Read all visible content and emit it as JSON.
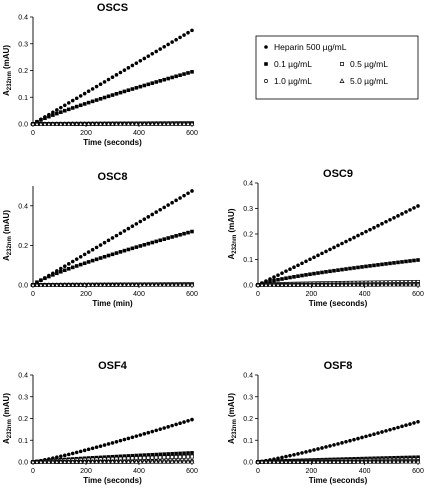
{
  "chart_data": [
    {
      "type": "scatter",
      "title": "OSCS",
      "xlabel": "Time (seconds)",
      "ylabel": "A232nm (mAU)",
      "ylabel_main": "A",
      "ylabel_sub": "232nm",
      "ylabel_unit": " (mAU)",
      "xlim": [
        0,
        600
      ],
      "ylim": [
        0,
        0.4
      ],
      "xticks": [
        0,
        200,
        400,
        600
      ],
      "yticks": [
        0.0,
        0.1,
        0.2,
        0.3,
        0.4
      ],
      "ytick_labels": [
        "0.0",
        "0.1",
        "0.2",
        "0.3",
        "0.4"
      ],
      "series": [
        {
          "name": "Heparin 500 µg/mL",
          "marker": "circle-filled",
          "slope": 0.35,
          "power": 1.0
        },
        {
          "name": "0.1 µg/mL",
          "marker": "square-filled",
          "slope": 0.195,
          "power": 0.85
        },
        {
          "name": "0.5 µg/mL",
          "marker": "square-open",
          "slope": 0.003,
          "power": 1.0
        },
        {
          "name": "1.0 µg/mL",
          "marker": "circle-open",
          "slope": 0.002,
          "power": 1.0
        },
        {
          "name": "5.0 µg/mL",
          "marker": "triangle-open",
          "slope": 0.001,
          "power": 1.0
        }
      ]
    },
    {
      "type": "scatter",
      "title": "OSC8",
      "xlabel": "Time (min)",
      "ylabel": "A232nm (mAU)",
      "ylabel_main": "A",
      "ylabel_sub": "232nm",
      "ylabel_unit": " (mAU)",
      "xlim": [
        0,
        600
      ],
      "ylim": [
        0,
        0.5
      ],
      "xticks": [
        0,
        200,
        400,
        600
      ],
      "yticks": [
        0.0,
        0.2,
        0.4
      ],
      "ytick_labels": [
        "0.0",
        "0.2",
        "0.4"
      ],
      "series": [
        {
          "name": "Heparin 500 µg/mL",
          "marker": "circle-filled",
          "slope": 0.475,
          "power": 1.0
        },
        {
          "name": "0.1 µg/mL",
          "marker": "square-filled",
          "slope": 0.27,
          "power": 0.8
        },
        {
          "name": "0.5 µg/mL",
          "marker": "square-open",
          "slope": 0.004,
          "power": 1.0
        },
        {
          "name": "1.0 µg/mL",
          "marker": "circle-open",
          "slope": 0.003,
          "power": 1.0
        },
        {
          "name": "5.0 µg/mL",
          "marker": "triangle-open",
          "slope": 0.002,
          "power": 1.0
        }
      ]
    },
    {
      "type": "scatter",
      "title": "OSC9",
      "xlabel": "Time (seconds)",
      "ylabel": "A232nm (mAU)",
      "ylabel_main": "A",
      "ylabel_sub": "232nm",
      "ylabel_unit": " (mAU)",
      "xlim": [
        0,
        600
      ],
      "ylim": [
        0,
        0.4
      ],
      "xticks": [
        0,
        200,
        400,
        600
      ],
      "yticks": [
        0.0,
        0.1,
        0.2,
        0.3,
        0.4
      ],
      "ytick_labels": [
        "0.0",
        "0.1",
        "0.2",
        "0.3",
        "0.4"
      ],
      "series": [
        {
          "name": "Heparin 500 µg/mL",
          "marker": "circle-filled",
          "slope": 0.31,
          "power": 1.0
        },
        {
          "name": "0.1 µg/mL",
          "marker": "square-filled",
          "slope": 0.098,
          "power": 0.75
        },
        {
          "name": "0.5 µg/mL",
          "marker": "square-open",
          "slope": 0.012,
          "power": 0.6
        },
        {
          "name": "1.0 µg/mL",
          "marker": "circle-open",
          "slope": 0.004,
          "power": 1.0
        },
        {
          "name": "5.0 µg/mL",
          "marker": "triangle-open",
          "slope": 0.002,
          "power": 1.0
        }
      ]
    },
    {
      "type": "scatter",
      "title": "OSF4",
      "xlabel": "Time (seconds)",
      "ylabel": "A232nm (mAU)",
      "ylabel_main": "A",
      "ylabel_sub": "232nm",
      "ylabel_unit": " (mAU)",
      "xlim": [
        0,
        600
      ],
      "ylim": [
        0,
        0.4
      ],
      "xticks": [
        0,
        200,
        400,
        600
      ],
      "yticks": [
        0.0,
        0.1,
        0.2,
        0.3,
        0.4
      ],
      "ytick_labels": [
        "0.0",
        "0.1",
        "0.2",
        "0.3",
        "0.4"
      ],
      "series": [
        {
          "name": "Heparin 500 µg/mL",
          "marker": "circle-filled",
          "slope": 0.195,
          "power": 1.15
        },
        {
          "name": "0.1 µg/mL",
          "marker": "square-filled",
          "slope": 0.042,
          "power": 0.8
        },
        {
          "name": "0.5 µg/mL",
          "marker": "square-open",
          "slope": 0.025,
          "power": 0.8
        },
        {
          "name": "1.0 µg/mL",
          "marker": "circle-open",
          "slope": 0.004,
          "power": 1.0
        },
        {
          "name": "5.0 µg/mL",
          "marker": "triangle-open",
          "slope": 0.002,
          "power": 1.0
        }
      ]
    },
    {
      "type": "scatter",
      "title": "OSF8",
      "xlabel": "Time (seconds)",
      "ylabel": "A232nm (mAU)",
      "ylabel_main": "A",
      "ylabel_sub": "232nm",
      "ylabel_unit": " (mAU)",
      "xlim": [
        0,
        600
      ],
      "ylim": [
        0,
        0.4
      ],
      "xticks": [
        0,
        200,
        400,
        600
      ],
      "yticks": [
        0.0,
        0.1,
        0.2,
        0.3,
        0.4
      ],
      "ytick_labels": [
        "0.0",
        "0.1",
        "0.2",
        "0.3",
        "0.4"
      ],
      "series": [
        {
          "name": "Heparin 500 µg/mL",
          "marker": "circle-filled",
          "slope": 0.185,
          "power": 1.15
        },
        {
          "name": "0.1 µg/mL",
          "marker": "square-filled",
          "slope": 0.022,
          "power": 0.8
        },
        {
          "name": "0.5 µg/mL",
          "marker": "square-open",
          "slope": 0.012,
          "power": 0.8
        },
        {
          "name": "1.0 µg/mL",
          "marker": "circle-open",
          "slope": 0.004,
          "power": 1.0
        },
        {
          "name": "5.0 µg/mL",
          "marker": "triangle-open",
          "slope": 0.002,
          "power": 1.0
        }
      ]
    }
  ],
  "legend": {
    "entries": [
      {
        "label": "Heparin 500 µg/mL",
        "marker": "circle-filled"
      },
      {
        "label": "0.1 µg/mL",
        "marker": "square-filled"
      },
      {
        "label": "0.5 µg/mL",
        "marker": "square-open"
      },
      {
        "label": "1.0 µg/mL",
        "marker": "circle-open"
      },
      {
        "label": "5.0 µg/mL",
        "marker": "triangle-open"
      }
    ]
  }
}
